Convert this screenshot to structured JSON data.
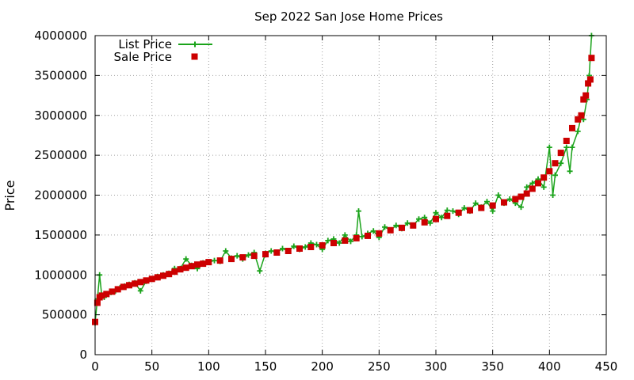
{
  "chart_data": {
    "type": "line",
    "title": "Sep 2022 San Jose Home Prices",
    "xlabel": "",
    "ylabel": "Price",
    "xlim": [
      0,
      450
    ],
    "ylim": [
      0,
      4000000
    ],
    "x_ticks": [
      0,
      50,
      100,
      150,
      200,
      250,
      300,
      350,
      400,
      450
    ],
    "x_tick_labels": [
      "0",
      "50",
      "100",
      "150",
      "200",
      "250",
      "300",
      "350",
      "400",
      "450"
    ],
    "y_ticks": [
      0,
      500000,
      1000000,
      1500000,
      2000000,
      2500000,
      3000000,
      3500000,
      4000000
    ],
    "y_tick_labels": [
      "0",
      "500000",
      "1000000",
      "1500000",
      "2000000",
      "2500000",
      "3000000",
      "3500000",
      "4000000"
    ],
    "grid": true,
    "legend_position": "top-left",
    "series": [
      {
        "name": "List Price",
        "style": "line+cross",
        "color": "#1aa31a",
        "x": [
          0,
          2,
          4,
          6,
          8,
          10,
          14,
          18,
          22,
          26,
          30,
          35,
          40,
          45,
          50,
          55,
          60,
          65,
          70,
          75,
          80,
          85,
          90,
          95,
          100,
          105,
          110,
          115,
          120,
          125,
          130,
          135,
          140,
          145,
          150,
          155,
          160,
          165,
          170,
          175,
          180,
          185,
          190,
          195,
          200,
          205,
          210,
          215,
          220,
          225,
          230,
          232,
          235,
          240,
          245,
          250,
          255,
          260,
          265,
          270,
          275,
          280,
          285,
          290,
          295,
          300,
          305,
          310,
          315,
          320,
          325,
          330,
          335,
          340,
          345,
          350,
          355,
          360,
          365,
          370,
          375,
          380,
          385,
          390,
          395,
          400,
          403,
          405,
          410,
          415,
          418,
          420,
          425,
          428,
          430,
          433,
          435,
          437
        ],
        "values": [
          400000,
          700000,
          1000000,
          720000,
          720000,
          760000,
          780000,
          800000,
          840000,
          860000,
          880000,
          900000,
          800000,
          920000,
          950000,
          980000,
          1000000,
          1020000,
          1080000,
          1080000,
          1200000,
          1120000,
          1080000,
          1150000,
          1160000,
          1180000,
          1170000,
          1300000,
          1210000,
          1240000,
          1200000,
          1250000,
          1280000,
          1050000,
          1270000,
          1300000,
          1280000,
          1330000,
          1300000,
          1360000,
          1320000,
          1350000,
          1400000,
          1380000,
          1320000,
          1430000,
          1450000,
          1400000,
          1500000,
          1420000,
          1500000,
          1800000,
          1480000,
          1520000,
          1550000,
          1470000,
          1600000,
          1560000,
          1620000,
          1580000,
          1650000,
          1620000,
          1700000,
          1720000,
          1650000,
          1780000,
          1720000,
          1810000,
          1800000,
          1760000,
          1840000,
          1800000,
          1900000,
          1850000,
          1920000,
          1800000,
          2000000,
          1900000,
          1950000,
          1900000,
          1850000,
          2100000,
          2150000,
          2200000,
          2100000,
          2600000,
          2000000,
          2250000,
          2400000,
          2600000,
          2300000,
          2600000,
          2800000,
          3000000,
          2950000,
          3200000,
          3500000,
          4000000
        ]
      },
      {
        "name": "Sale Price",
        "style": "square-points",
        "color": "#cc0000",
        "x": [
          0,
          2,
          4,
          6,
          10,
          15,
          20,
          25,
          30,
          35,
          40,
          45,
          50,
          55,
          60,
          65,
          70,
          75,
          80,
          85,
          90,
          95,
          100,
          110,
          120,
          130,
          140,
          150,
          160,
          170,
          180,
          190,
          200,
          210,
          220,
          230,
          240,
          250,
          260,
          270,
          280,
          290,
          300,
          310,
          320,
          330,
          340,
          350,
          360,
          370,
          375,
          380,
          385,
          390,
          395,
          400,
          405,
          410,
          415,
          420,
          425,
          428,
          430,
          432,
          434,
          436,
          437
        ],
        "values": [
          410000,
          650000,
          720000,
          740000,
          760000,
          790000,
          820000,
          850000,
          870000,
          890000,
          910000,
          930000,
          950000,
          970000,
          990000,
          1010000,
          1040000,
          1070000,
          1090000,
          1110000,
          1130000,
          1140000,
          1160000,
          1180000,
          1200000,
          1220000,
          1240000,
          1260000,
          1280000,
          1300000,
          1330000,
          1350000,
          1370000,
          1400000,
          1430000,
          1460000,
          1490000,
          1520000,
          1560000,
          1590000,
          1620000,
          1660000,
          1700000,
          1740000,
          1780000,
          1810000,
          1840000,
          1870000,
          1910000,
          1950000,
          1980000,
          2020000,
          2080000,
          2150000,
          2220000,
          2300000,
          2400000,
          2530000,
          2680000,
          2840000,
          2950000,
          3000000,
          3200000,
          3250000,
          3400000,
          3450000,
          3720000
        ]
      }
    ]
  }
}
